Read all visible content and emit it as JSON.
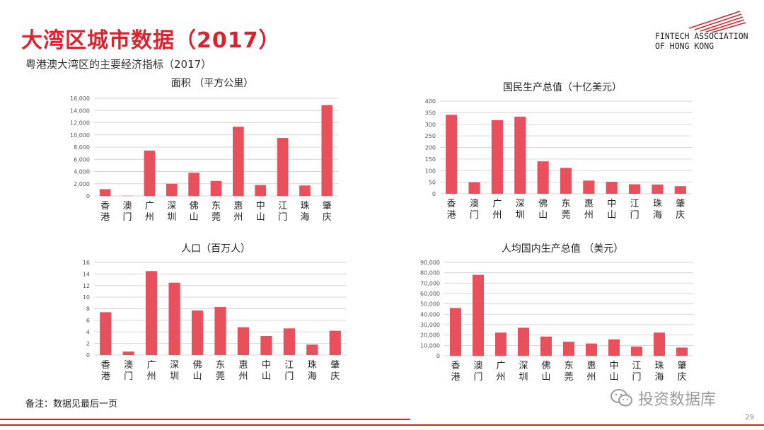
{
  "slide": {
    "title": "大湾区城市数据（2017）",
    "subtitle": "粤港澳大湾区的主要经济指标（2017）",
    "note": "备注：数据见最后一页",
    "watermark": "投资数据库",
    "page_number": "29",
    "logo_line1": "FINTECH ASSOCIATION",
    "logo_line2": "OF HONG KONG"
  },
  "colors": {
    "accent": "#d9232d",
    "bar": "#e8505b",
    "grid": "#d6d6d6"
  },
  "chart_data": [
    {
      "type": "bar",
      "title": "面积 （平方公里）",
      "categories": [
        "香港",
        "澳门",
        "广州",
        "深圳",
        "佛山",
        "东莞",
        "惠州",
        "中山",
        "江门",
        "珠海",
        "肇庆"
      ],
      "values": [
        1106,
        30,
        7434,
        1997,
        3798,
        2460,
        11347,
        1784,
        9505,
        1711,
        14891
      ],
      "ylim": [
        0,
        16000
      ],
      "yticks": [
        "0",
        "2,000",
        "4,000",
        "6,000",
        "8,000",
        "10,000",
        "12,000",
        "14,000",
        "16,000"
      ],
      "grid": true
    },
    {
      "type": "bar",
      "title": "国民生产总值（十亿美元）",
      "categories": [
        "香港",
        "澳门",
        "广州",
        "深圳",
        "佛山",
        "东莞",
        "惠州",
        "中山",
        "江门",
        "珠海",
        "肇庆"
      ],
      "values": [
        341,
        50,
        318,
        333,
        140,
        112,
        57,
        52,
        41,
        40,
        33
      ],
      "ylim": [
        0,
        400
      ],
      "yticks": [
        "0",
        "50",
        "100",
        "150",
        "200",
        "250",
        "300",
        "350",
        "400"
      ],
      "grid": true
    },
    {
      "type": "bar",
      "title": "人口（百万人）",
      "categories": [
        "香港",
        "澳门",
        "广州",
        "深圳",
        "佛山",
        "东莞",
        "惠州",
        "中山",
        "江门",
        "珠海",
        "肇庆"
      ],
      "values": [
        7.4,
        0.6,
        14.5,
        12.5,
        7.7,
        8.3,
        4.8,
        3.3,
        4.6,
        1.8,
        4.2
      ],
      "ylim": [
        0,
        16
      ],
      "yticks": [
        "0",
        "2",
        "4",
        "6",
        "8",
        "10",
        "12",
        "14",
        "16"
      ],
      "grid": true
    },
    {
      "type": "bar",
      "title": "人均国内生产总值 （美元）",
      "categories": [
        "香港",
        "澳门",
        "广州",
        "深圳",
        "佛山",
        "东莞",
        "惠州",
        "中山",
        "江门",
        "珠海",
        "肇庆"
      ],
      "values": [
        46000,
        78000,
        22300,
        27000,
        18500,
        13500,
        11800,
        15800,
        8800,
        22300,
        7900
      ],
      "ylim": [
        0,
        90000
      ],
      "yticks": [
        "0",
        "10,000",
        "20,000",
        "30,000",
        "40,000",
        "50,000",
        "60,000",
        "70,000",
        "80,000",
        "90,000"
      ],
      "grid": true
    }
  ]
}
